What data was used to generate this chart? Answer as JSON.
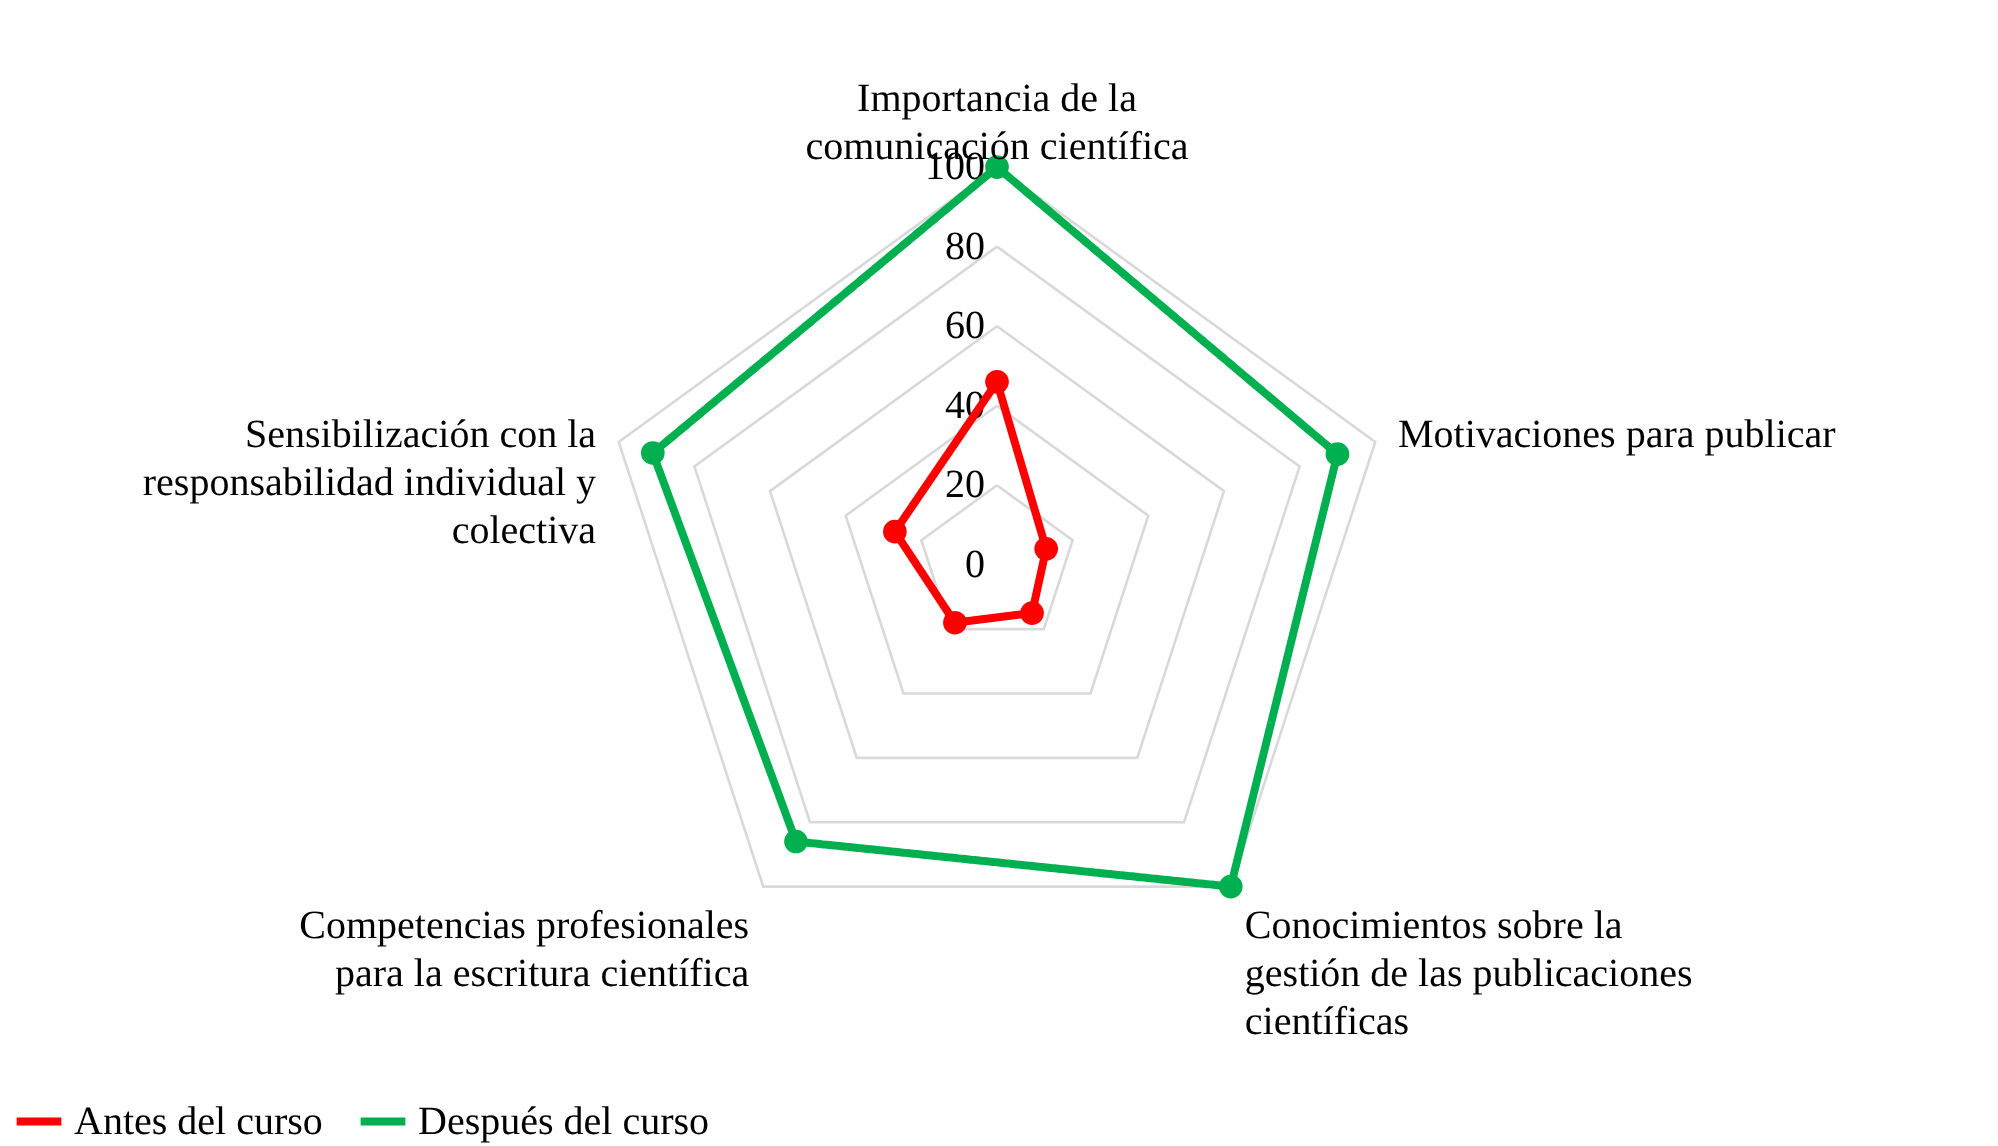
{
  "chart_data": {
    "type": "radar",
    "categories": [
      "Importancia de la comunicación científica",
      "Motivaciones para publicar",
      "Conocimientos sobre la gestión de las publicaciones científicas",
      "Competencias profesionales para la escritura científica",
      "Sensibilización con la responsabilidad individual y colectiva"
    ],
    "series": [
      {
        "name": "Antes del curso",
        "color": "#ff0000",
        "values": [
          46,
          13,
          15,
          18,
          27
        ]
      },
      {
        "name": "Después del curso",
        "color": "#00b050",
        "values": [
          100,
          90,
          100,
          86,
          91
        ]
      }
    ],
    "ylim": [
      0,
      100
    ],
    "yticks": [
      0,
      20,
      40,
      60,
      80,
      100
    ],
    "grid": true,
    "legend": "bottom",
    "marker": "circle",
    "line_style": "solid"
  }
}
